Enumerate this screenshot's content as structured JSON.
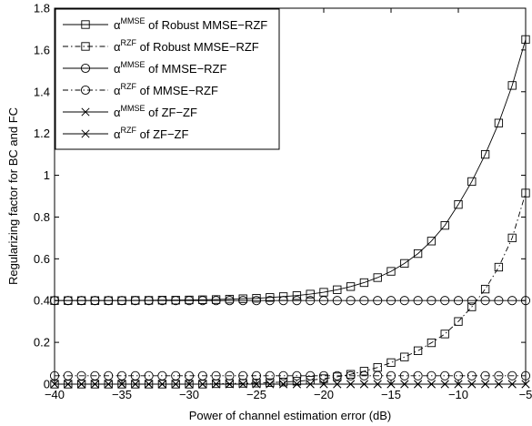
{
  "chart_data": {
    "type": "line",
    "title": "",
    "xlabel": "Power of channel estimation error (dB)",
    "ylabel": "Regularizing factor for BC and FC",
    "xlim": [
      -40,
      -5
    ],
    "ylim": [
      0,
      1.8
    ],
    "xticks": [
      -40,
      -35,
      -30,
      -25,
      -20,
      -15,
      -10,
      -5
    ],
    "yticks": [
      0,
      0.2,
      0.4,
      0.6,
      0.8,
      1,
      1.2,
      1.4,
      1.6,
      1.8
    ],
    "xtick_labels": [
      "−40",
      "−35",
      "−30",
      "−25",
      "−20",
      "−15",
      "−10",
      "−5"
    ],
    "ytick_labels": [
      "0",
      "0.2",
      "0.4",
      "0.6",
      "0.8",
      "1",
      "1.2",
      "1.4",
      "1.6",
      "1.8"
    ],
    "grid": false,
    "legend_position": "top-left",
    "x": [
      -40,
      -39,
      -38,
      -37,
      -36,
      -35,
      -34,
      -33,
      -32,
      -31,
      -30,
      -29,
      -28,
      -27,
      -26,
      -25,
      -24,
      -23,
      -22,
      -21,
      -20,
      -19,
      -18,
      -17,
      -16,
      -15,
      -14,
      -13,
      -12,
      -11,
      -10,
      -9,
      -8,
      -7,
      -6,
      -5
    ],
    "series": [
      {
        "name": "α^MMSE of Robust MMSE−RZF",
        "base": "α",
        "sup": "MMSE",
        "suffix": " of Robust MMSE−RZF",
        "marker": "square",
        "dash": "solid",
        "values": [
          0.4,
          0.4,
          0.4,
          0.4,
          0.4,
          0.4,
          0.401,
          0.401,
          0.402,
          0.402,
          0.403,
          0.404,
          0.405,
          0.407,
          0.409,
          0.411,
          0.415,
          0.419,
          0.424,
          0.431,
          0.44,
          0.452,
          0.467,
          0.486,
          0.51,
          0.54,
          0.578,
          0.625,
          0.685,
          0.76,
          0.86,
          0.97,
          1.1,
          1.25,
          1.43,
          1.65
        ]
      },
      {
        "name": "α^RZF of Robust MMSE−RZF",
        "base": "α",
        "sup": "RZF",
        "suffix": " of Robust MMSE−RZF",
        "marker": "square",
        "dash": "dashdot",
        "values": [
          0.0,
          0.0,
          0.0,
          0.0,
          0.0,
          0.0,
          0.0,
          0.0,
          0.0,
          0.0,
          0.0,
          0.0,
          0.002,
          0.003,
          0.004,
          0.005,
          0.007,
          0.01,
          0.014,
          0.019,
          0.026,
          0.035,
          0.047,
          0.062,
          0.08,
          0.103,
          0.13,
          0.16,
          0.198,
          0.24,
          0.3,
          0.37,
          0.455,
          0.56,
          0.7,
          0.915
        ]
      },
      {
        "name": "α^MMSE of MMSE−RZF",
        "base": "α",
        "sup": "MMSE",
        "suffix": " of MMSE−RZF",
        "marker": "circle",
        "dash": "solid",
        "values": [
          0.4,
          0.4,
          0.4,
          0.4,
          0.4,
          0.4,
          0.4,
          0.4,
          0.4,
          0.4,
          0.4,
          0.4,
          0.4,
          0.4,
          0.4,
          0.4,
          0.4,
          0.4,
          0.4,
          0.4,
          0.4,
          0.4,
          0.4,
          0.4,
          0.4,
          0.4,
          0.4,
          0.4,
          0.4,
          0.4,
          0.4,
          0.4,
          0.4,
          0.4,
          0.4,
          0.4
        ]
      },
      {
        "name": "α^RZF of MMSE−RZF",
        "base": "α",
        "sup": "RZF",
        "suffix": " of MMSE−RZF",
        "marker": "circle",
        "dash": "dashdot",
        "values": [
          0.04,
          0.04,
          0.04,
          0.04,
          0.04,
          0.04,
          0.04,
          0.04,
          0.04,
          0.04,
          0.04,
          0.04,
          0.04,
          0.04,
          0.04,
          0.04,
          0.04,
          0.04,
          0.04,
          0.04,
          0.04,
          0.04,
          0.04,
          0.04,
          0.04,
          0.04,
          0.04,
          0.04,
          0.04,
          0.04,
          0.04,
          0.04,
          0.04,
          0.04,
          0.04,
          0.04
        ]
      },
      {
        "name": "α^MMSE of ZF−ZF",
        "base": "α",
        "sup": "MMSE",
        "suffix": " of ZF−ZF",
        "marker": "x",
        "dash": "solid",
        "values": [
          0,
          0,
          0,
          0,
          0,
          0,
          0,
          0,
          0,
          0,
          0,
          0,
          0,
          0,
          0,
          0,
          0,
          0,
          0,
          0,
          0,
          0,
          0,
          0,
          0,
          0,
          0,
          0,
          0,
          0,
          0,
          0,
          0,
          0,
          0,
          0
        ]
      },
      {
        "name": "α^RZF of ZF−ZF",
        "base": "α",
        "sup": "RZF",
        "suffix": " of ZF−ZF",
        "marker": "x",
        "dash": "solid",
        "values": [
          0,
          0,
          0,
          0,
          0,
          0,
          0,
          0,
          0,
          0,
          0,
          0,
          0,
          0,
          0,
          0,
          0,
          0,
          0,
          0,
          0,
          0,
          0,
          0,
          0,
          0,
          0,
          0,
          0,
          0,
          0,
          0,
          0,
          0,
          0,
          0
        ]
      }
    ]
  }
}
